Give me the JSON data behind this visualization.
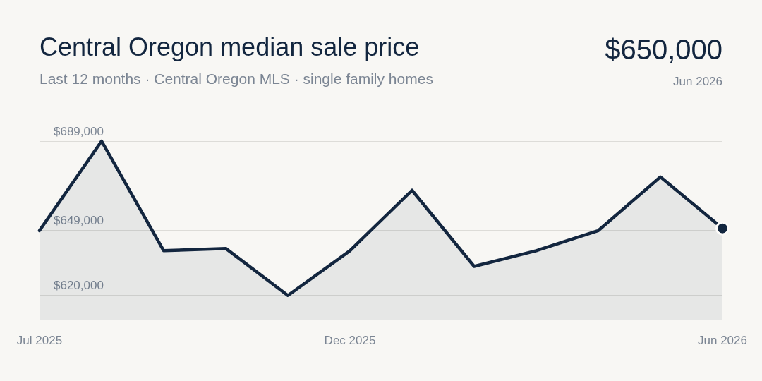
{
  "chart_data": {
    "type": "area",
    "title": "Central Oregon median sale price",
    "subtitle": "Last 12 months · Central Oregon MLS · single family homes",
    "categories": [
      "Jul 2025",
      null,
      null,
      null,
      null,
      "Dec 2025",
      null,
      null,
      null,
      null,
      null,
      "Jun 2026"
    ],
    "series": [
      {
        "color": "#13263f",
        "values": [
          649000,
          689000,
          640000,
          641000,
          620000,
          640000,
          667000,
          633000,
          640000,
          649000,
          673000,
          650000
        ]
      },
      {
        "type": "scatter",
        "color": "#13263f",
        "marker": "circle",
        "x": [
          "Jun 2026"
        ],
        "values": [
          650000
        ]
      }
    ],
    "marker": "none",
    "grid": "y",
    "legend": false,
    "ylim": [
      609000,
      689000
    ],
    "yticks": [
      {
        "value": 620000,
        "label": "$620,000"
      },
      {
        "value": 649000,
        "label": "$649,000"
      },
      {
        "value": 689000,
        "label": "$689,000"
      }
    ],
    "annotations": [
      "$650,000",
      "Jun 2026"
    ]
  }
}
